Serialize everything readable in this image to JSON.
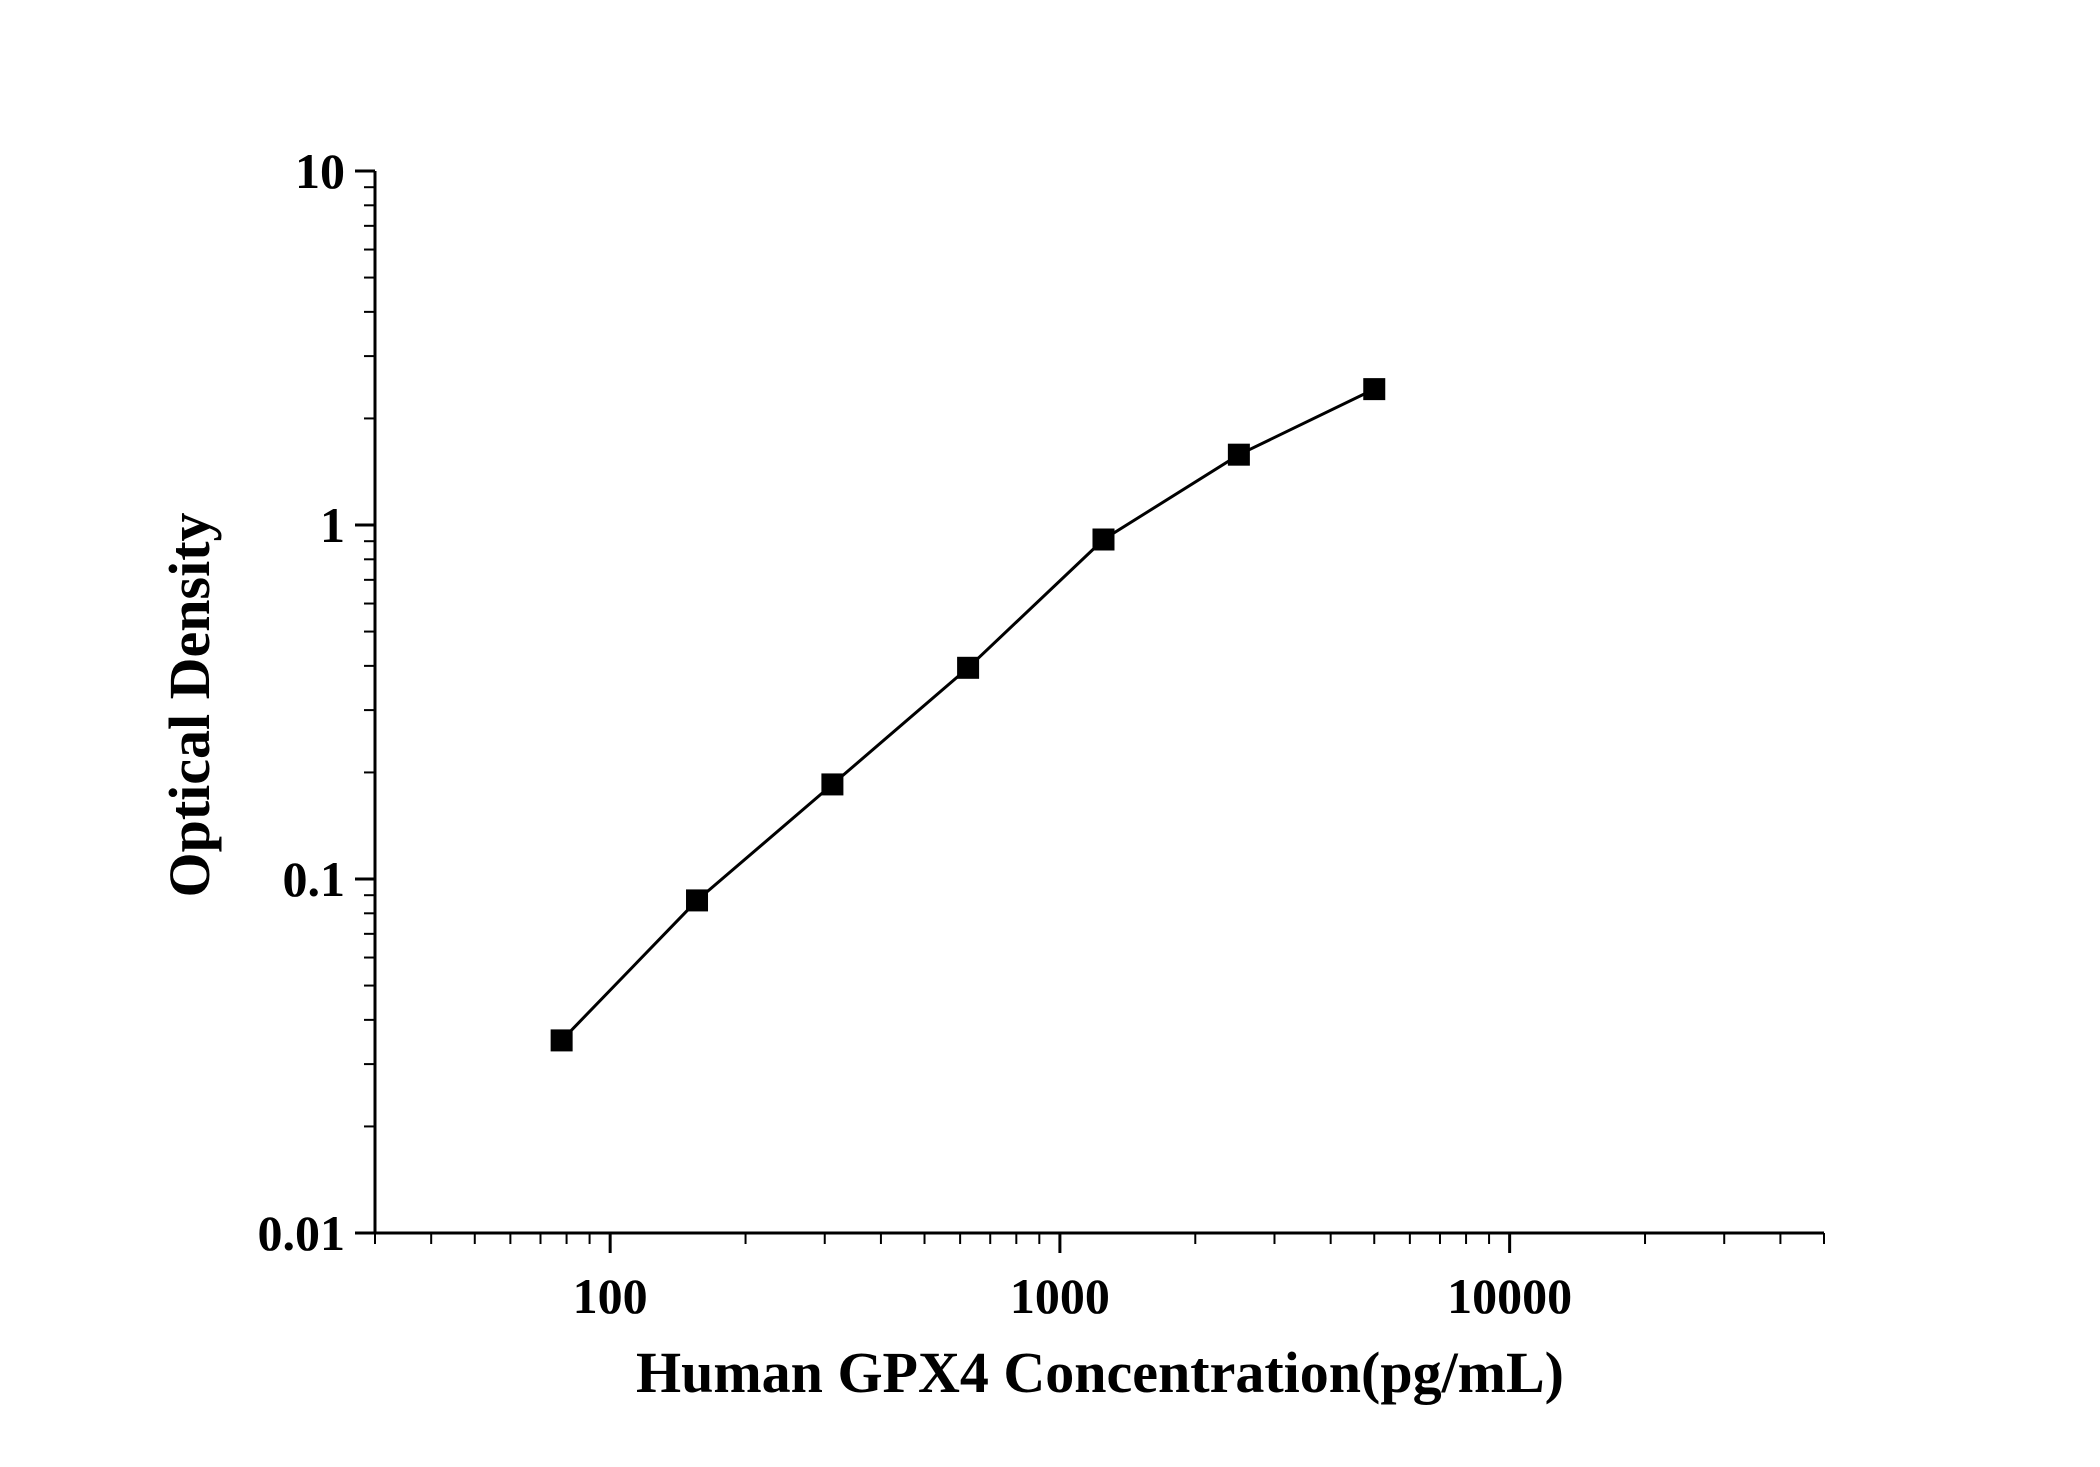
{
  "chart_data": {
    "type": "line",
    "xlabel": "Human GPX4 Concentration(pg/mL)",
    "ylabel": "Optical Density",
    "x_scale": "log",
    "y_scale": "log",
    "xlim": [
      30,
      50000
    ],
    "ylim": [
      0.01,
      10
    ],
    "x_ticks": [
      100,
      1000,
      10000
    ],
    "x_tick_labels": [
      "100",
      "1000",
      "10000"
    ],
    "y_ticks": [
      0.01,
      0.1,
      1,
      10
    ],
    "y_tick_labels": [
      "0.01",
      "0.1",
      "1",
      "10"
    ],
    "grid": false,
    "legend": "none",
    "series": [
      {
        "marker": "square",
        "color": "#000000",
        "x": [
          78,
          156,
          312,
          625,
          1250,
          2500,
          5000
        ],
        "y": [
          0.035,
          0.087,
          0.185,
          0.395,
          0.91,
          1.58,
          2.42
        ]
      }
    ]
  }
}
